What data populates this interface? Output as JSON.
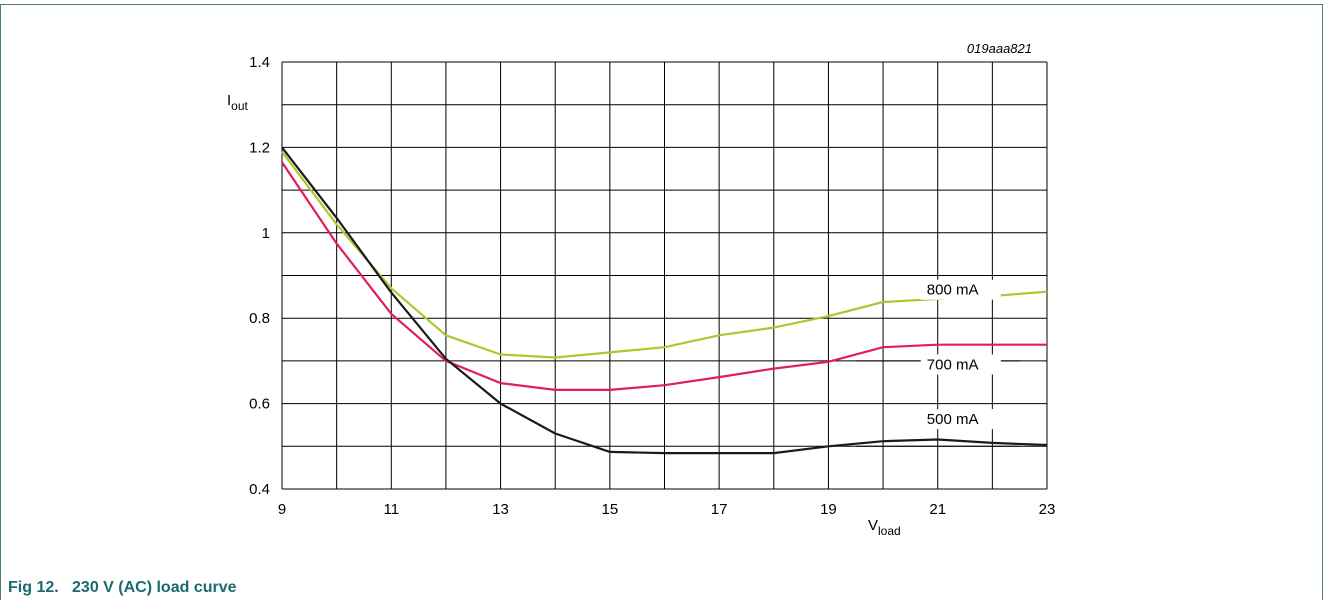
{
  "figure": {
    "code": "019aaa821",
    "caption": "Fig 12.   230 V (AC) load curve"
  },
  "colors": {
    "frame": "#4a7f72",
    "caption": "#1a6a70",
    "grid": "#000000"
  },
  "chart_data": {
    "type": "line",
    "title": "",
    "xlabel_main": "V",
    "xlabel_sub": "load",
    "ylabel_main": "I",
    "ylabel_sub": "out",
    "xlim": [
      9,
      23
    ],
    "ylim": [
      0.4,
      1.4
    ],
    "x_ticks": [
      9,
      11,
      13,
      15,
      17,
      19,
      21,
      23
    ],
    "x_tick_labels": [
      "9",
      "11",
      "13",
      "15",
      "17",
      "19",
      "21",
      "23"
    ],
    "y_ticks": [
      0.4,
      0.6,
      0.8,
      1.0,
      1.2,
      1.4
    ],
    "y_tick_labels": [
      "0.4",
      "0.6",
      "0.8",
      "1",
      "1.2",
      "1.4"
    ],
    "x_grid_step": 1,
    "y_grid_step": 0.1,
    "grid": true,
    "legend": "inline labels",
    "series": [
      {
        "name": "800 mA",
        "color": "#a9c931",
        "points": [
          [
            9,
            1.19
          ],
          [
            10,
            1.02
          ],
          [
            11,
            0.87
          ],
          [
            12,
            0.76
          ],
          [
            13,
            0.715
          ],
          [
            14,
            0.708
          ],
          [
            15,
            0.72
          ],
          [
            16,
            0.732
          ],
          [
            17,
            0.76
          ],
          [
            18,
            0.778
          ],
          [
            19,
            0.805
          ],
          [
            20,
            0.838
          ],
          [
            21,
            0.845
          ],
          [
            22,
            0.852
          ],
          [
            23,
            0.862
          ]
        ],
        "label_at": [
          20.8,
          0.855
        ],
        "leader": [
          [
            19.5,
            0.9
          ],
          [
            22.5,
            0.9
          ]
        ]
      },
      {
        "name": "700 mA",
        "color": "#e01e59",
        "points": [
          [
            9,
            1.165
          ],
          [
            10,
            0.975
          ],
          [
            11,
            0.81
          ],
          [
            12,
            0.7
          ],
          [
            13,
            0.648
          ],
          [
            14,
            0.632
          ],
          [
            15,
            0.632
          ],
          [
            16,
            0.643
          ],
          [
            17,
            0.662
          ],
          [
            18,
            0.682
          ],
          [
            19,
            0.698
          ],
          [
            20,
            0.732
          ],
          [
            21,
            0.738
          ],
          [
            22,
            0.738
          ],
          [
            23,
            0.738
          ]
        ],
        "label_at": [
          20.8,
          0.68
        ],
        "leader": [
          [
            19.5,
            0.7
          ],
          [
            22.5,
            0.7
          ]
        ]
      },
      {
        "name": "500 mA",
        "color": "#1a1a1a",
        "points": [
          [
            9,
            1.2
          ],
          [
            10,
            1.035
          ],
          [
            11,
            0.86
          ],
          [
            12,
            0.705
          ],
          [
            13,
            0.6
          ],
          [
            14,
            0.53
          ],
          [
            15,
            0.487
          ],
          [
            16,
            0.484
          ],
          [
            17,
            0.484
          ],
          [
            18,
            0.484
          ],
          [
            19,
            0.5
          ],
          [
            20,
            0.512
          ],
          [
            21,
            0.516
          ],
          [
            22,
            0.508
          ],
          [
            23,
            0.503
          ]
        ],
        "label_at": [
          20.8,
          0.552
        ],
        "leader": [
          [
            19.5,
            0.5
          ],
          [
            22.5,
            0.5
          ]
        ]
      }
    ]
  }
}
